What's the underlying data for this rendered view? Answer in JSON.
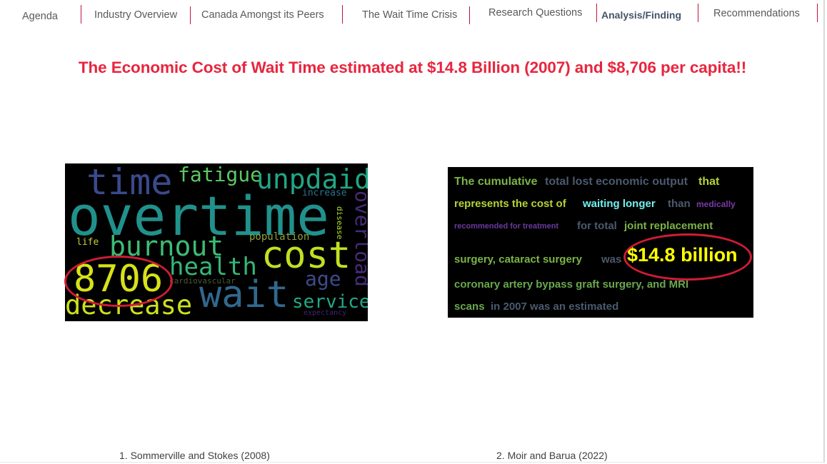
{
  "nav": {
    "items": [
      {
        "label": "Agenda"
      },
      {
        "label": "Industry Overview"
      },
      {
        "label": "Canada Amongst its Peers"
      },
      {
        "label": "The Wait Time Crisis"
      },
      {
        "label": "Research Questions"
      },
      {
        "label": "Analysis/Finding"
      },
      {
        "label": "Recommendations"
      }
    ],
    "active": "Analysis/Finding",
    "separator_color": "#c0143c"
  },
  "title": "The Economic Cost of Wait Time estimated at $14.8 Billion (2007) and $8,706 per capita!!",
  "title_color": "#e8253e",
  "wordcloud": {
    "background": "#000000",
    "words": [
      {
        "text": "time",
        "color": "#3b4a8c"
      },
      {
        "text": "fatigue",
        "color": "#5cc863"
      },
      {
        "text": "unpdaid",
        "color": "#21a685"
      },
      {
        "text": "overtime",
        "color": "#21918c"
      },
      {
        "text": "increase",
        "color": "#2c728e"
      },
      {
        "text": "disease",
        "color": "#b5de2b"
      },
      {
        "text": "overload",
        "color": "#472c7a"
      },
      {
        "text": "burnout",
        "color": "#3dbc74"
      },
      {
        "text": "population",
        "color": "#8fa33a"
      },
      {
        "text": "life",
        "color": "#c8d03a"
      },
      {
        "text": "cost",
        "color": "#c2df23"
      },
      {
        "text": "health",
        "color": "#35b779"
      },
      {
        "text": "age",
        "color": "#3e4a89"
      },
      {
        "text": "8706",
        "color": "#d7e219"
      },
      {
        "text": "cardiovascular",
        "color": "#4a5a3a"
      },
      {
        "text": "wait",
        "color": "#31688e"
      },
      {
        "text": "decrease",
        "color": "#cde11d"
      },
      {
        "text": "service",
        "color": "#22a884"
      },
      {
        "text": "expectancy",
        "color": "#46237a"
      }
    ]
  },
  "quote": {
    "background": "#000000",
    "segments": [
      {
        "text": "The cumulative",
        "color": "#7db347"
      },
      {
        "text": "total lost economic output",
        "color": "#4b5a6e"
      },
      {
        "text": "that",
        "color": "#b5d334"
      },
      {
        "text": "represents the cost of",
        "color": "#b5d334"
      },
      {
        "text": "waiting longer",
        "color": "#74f0f0"
      },
      {
        "text": "than",
        "color": "#4b5a6e"
      },
      {
        "text": "medically",
        "color": "#7a3aa8"
      },
      {
        "text": "recommended for treatment",
        "color": "#6b3aa0"
      },
      {
        "text": "for total",
        "color": "#4b5a6e"
      },
      {
        "text": "joint replacement",
        "color": "#7db347"
      },
      {
        "text": "surgery, cataract surgery",
        "color": "#7db347"
      },
      {
        "text": "was",
        "color": "#4b5a6e"
      },
      {
        "text": "$14.8 billion",
        "color": "#ffff00"
      },
      {
        "text": "coronary artery bypass graft surgery, and MRI",
        "color": "#6aa84f"
      },
      {
        "text": "scans",
        "color": "#6aa84f"
      },
      {
        "text": "in 2007 was an estimated",
        "color": "#4b5a6e"
      }
    ]
  },
  "highlight_color": "#d01c36",
  "citations": [
    {
      "text": "1. Sommerville and Stokes (2008)"
    },
    {
      "text": "2. Moir and Barua (2022)"
    }
  ]
}
